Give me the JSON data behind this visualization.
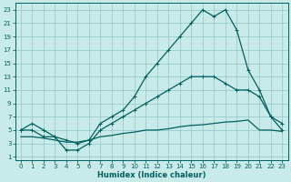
{
  "xlabel": "Humidex (Indice chaleur)",
  "bg_color": "#c8eae8",
  "grid_color": "#99cccc",
  "line_color": "#006060",
  "xlim_min": -0.5,
  "xlim_max": 23.5,
  "ylim_min": 0.5,
  "ylim_max": 24.0,
  "yticks": [
    1,
    3,
    5,
    7,
    9,
    11,
    13,
    15,
    17,
    19,
    21,
    23
  ],
  "xticks": [
    0,
    1,
    2,
    3,
    4,
    5,
    6,
    7,
    8,
    9,
    10,
    11,
    12,
    13,
    14,
    15,
    16,
    17,
    18,
    19,
    20,
    21,
    22,
    23
  ],
  "curve1_x": [
    0,
    1,
    2,
    3,
    4,
    5,
    6,
    7,
    8,
    9,
    10,
    11,
    12,
    13,
    14,
    15,
    16,
    17,
    18,
    19,
    20,
    21,
    22,
    23
  ],
  "curve1_y": [
    5,
    6,
    5,
    4,
    3.5,
    3,
    3.5,
    6,
    7,
    8,
    10,
    13,
    15,
    17,
    19,
    21,
    23,
    22,
    23,
    20,
    14,
    11,
    7,
    6
  ],
  "curve2_x": [
    0,
    1,
    2,
    3,
    4,
    5,
    6,
    7,
    8,
    9,
    10,
    11,
    12,
    13,
    14,
    15,
    16,
    17,
    18,
    19,
    20,
    21,
    22,
    23
  ],
  "curve2_y": [
    5,
    5,
    4,
    4,
    2,
    2,
    3,
    5,
    6,
    7,
    8,
    9,
    10,
    11,
    12,
    13,
    13,
    13,
    12,
    11,
    11,
    10,
    7,
    5
  ],
  "curve3_x": [
    0,
    1,
    2,
    3,
    4,
    5,
    6,
    7,
    8,
    9,
    10,
    11,
    12,
    13,
    14,
    15,
    16,
    17,
    18,
    19,
    20,
    21,
    22,
    23
  ],
  "curve3_y": [
    4,
    4,
    3.8,
    3.5,
    3.2,
    3.2,
    3.5,
    4,
    4.2,
    4.5,
    4.7,
    5,
    5,
    5.2,
    5.5,
    5.7,
    5.8,
    6,
    6.2,
    6.3,
    6.5,
    5,
    5,
    4.8
  ],
  "xlabel_fontsize": 6,
  "tick_fontsize": 5,
  "lw": 0.9,
  "markersize": 3
}
